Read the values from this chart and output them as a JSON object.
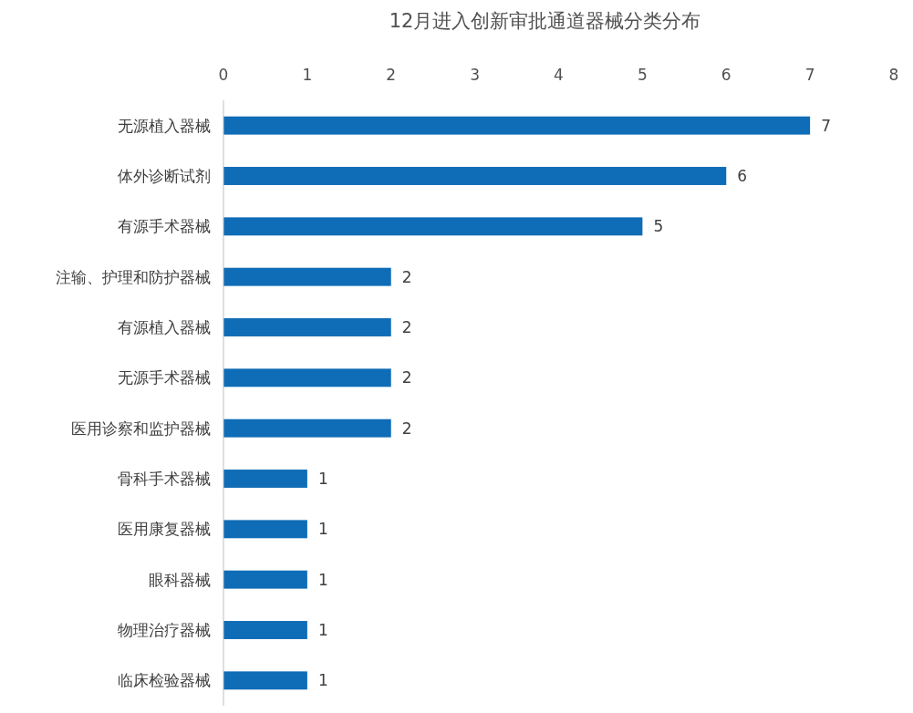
{
  "chart_data": {
    "type": "bar",
    "orientation": "horizontal",
    "title": "12月进入创新审批通道器械分类分布",
    "categories": [
      "无源植入器械",
      "体外诊断试剂",
      "有源手术器械",
      "注输、护理和防护器械",
      "有源植入器械",
      "无源手术器械",
      "医用诊察和监护器械",
      "骨科手术器械",
      "医用康复器械",
      "眼科器械",
      "物理治疗器械",
      "临床检验器械"
    ],
    "values": [
      7,
      6,
      5,
      2,
      2,
      2,
      2,
      1,
      1,
      1,
      1,
      1
    ],
    "color": "#0f6cb6",
    "xlim": [
      0,
      8
    ],
    "xticks": [
      0,
      1,
      2,
      3,
      4,
      5,
      6,
      7,
      8
    ],
    "data_labels": true
  }
}
